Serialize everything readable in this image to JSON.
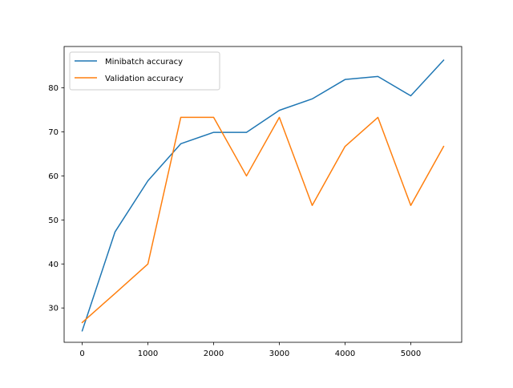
{
  "chart_data": {
    "type": "line",
    "title": "",
    "xlabel": "",
    "ylabel": "",
    "xlim": [
      -275,
      5775
    ],
    "ylim": [
      22.2,
      89.4
    ],
    "x_ticks": [
      0,
      1000,
      2000,
      3000,
      4000,
      5000
    ],
    "y_ticks": [
      30,
      40,
      50,
      60,
      70,
      80
    ],
    "grid": false,
    "legend_position": "top-left",
    "x": [
      0,
      500,
      1000,
      1500,
      2000,
      2500,
      3000,
      3500,
      4000,
      4500,
      5000,
      5500
    ],
    "series": [
      {
        "name": "Minibatch accuracy",
        "color": "#1f77b4",
        "values": [
          24.8,
          47.3,
          58.9,
          67.3,
          69.9,
          69.9,
          74.9,
          77.5,
          81.9,
          82.6,
          78.2,
          86.3
        ]
      },
      {
        "name": "Validation accuracy",
        "color": "#ff7f0e",
        "values": [
          26.7,
          33.3,
          40.0,
          73.3,
          73.3,
          60.0,
          73.3,
          53.3,
          66.7,
          73.3,
          53.3,
          66.7
        ]
      }
    ]
  }
}
